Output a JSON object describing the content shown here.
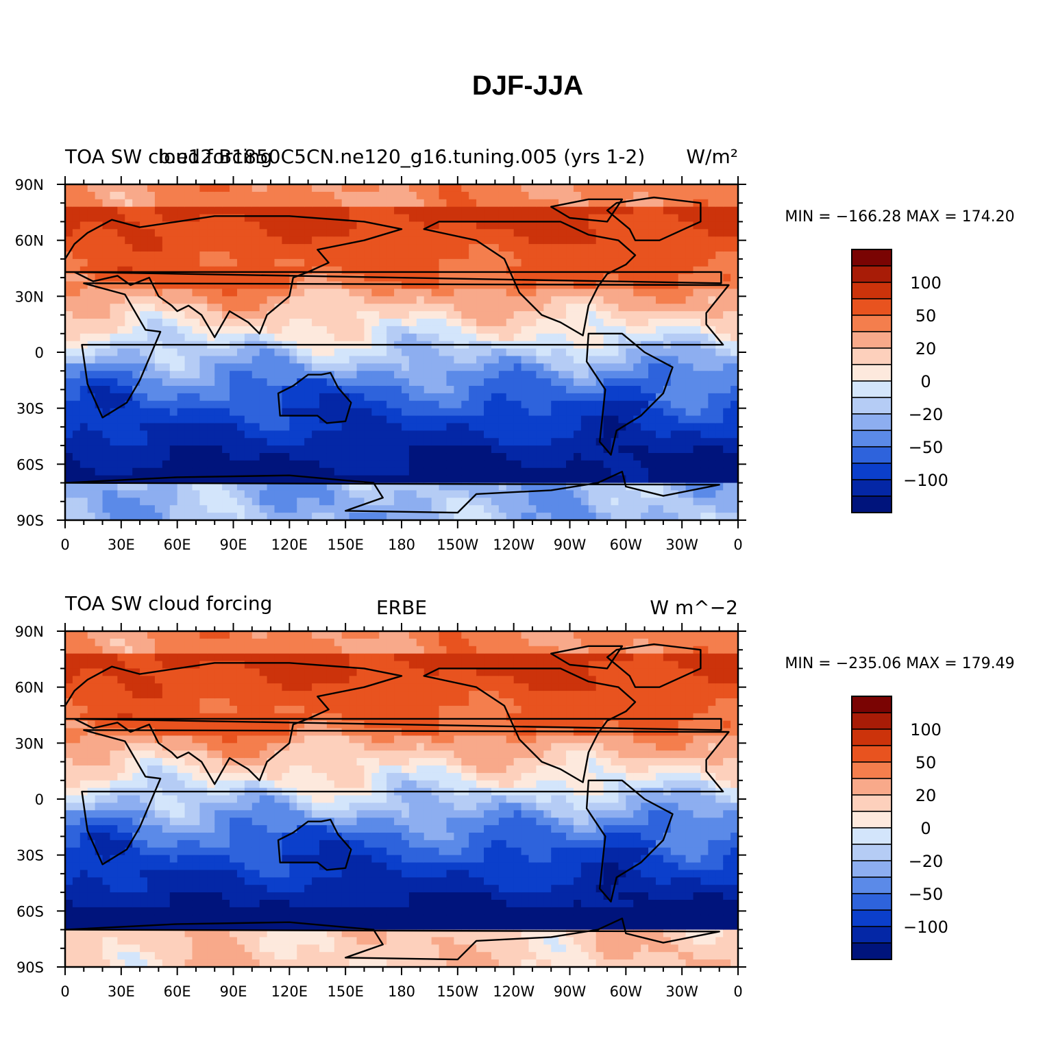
{
  "figure": {
    "title": "DJF-JJA"
  },
  "chart_data": [
    {
      "type": "heatmap",
      "title_left": "TOA SW cloud forcing",
      "title_center": "b.e12.B1850C5CN.ne120_g16.tuning.005 (yrs 1-2)",
      "units": "W/m²",
      "minmax": "MIN = −166.28  MAX = 174.20",
      "min": -166.28,
      "max": 174.2,
      "x_ticks": [
        "0",
        "30E",
        "60E",
        "90E",
        "120E",
        "150E",
        "180",
        "150W",
        "120W",
        "90W",
        "60W",
        "30W",
        "0"
      ],
      "y_ticks": [
        "90N",
        "60N",
        "30N",
        "0",
        "30S",
        "60S",
        "90S"
      ],
      "xlim": [
        0,
        360
      ],
      "ylim": [
        -90,
        90
      ],
      "colorbar_labels": [
        "100",
        "50",
        "20",
        "0",
        "−20",
        "−50",
        "−100"
      ],
      "colorbar_values": [
        100,
        50,
        20,
        0,
        -20,
        -50,
        -100
      ]
    },
    {
      "type": "heatmap",
      "title_left": "TOA SW cloud forcing",
      "title_center": "ERBE",
      "units": "W m^−2",
      "minmax": "MIN = −235.06  MAX = 179.49",
      "min": -235.06,
      "max": 179.49,
      "x_ticks": [
        "0",
        "30E",
        "60E",
        "90E",
        "120E",
        "150E",
        "180",
        "150W",
        "120W",
        "90W",
        "60W",
        "30W",
        "0"
      ],
      "y_ticks": [
        "90N",
        "60N",
        "30N",
        "0",
        "30S",
        "60S",
        "90S"
      ],
      "xlim": [
        0,
        360
      ],
      "ylim": [
        -90,
        90
      ],
      "colorbar_labels": [
        "100",
        "50",
        "20",
        "0",
        "−20",
        "−50",
        "−100"
      ],
      "colorbar_values": [
        100,
        50,
        20,
        0,
        -20,
        -50,
        -100
      ]
    }
  ],
  "colors": {
    "colorbar": [
      "#7a0403",
      "#a81c07",
      "#cc330b",
      "#e8531f",
      "#f47e4d",
      "#f8a98a",
      "#fdd0bc",
      "#fde9dd",
      "#d3e5fb",
      "#b5ccf5",
      "#8daef0",
      "#5b8ae8",
      "#2e63dc",
      "#0b3fcb",
      "#0427a6",
      "#00147c"
    ]
  }
}
